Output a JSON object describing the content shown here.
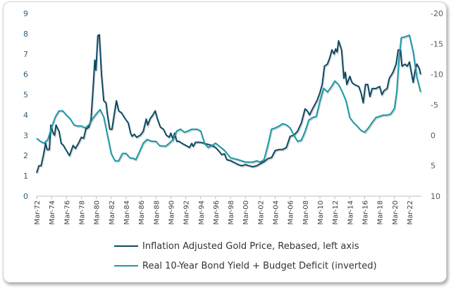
{
  "chart_data": {
    "type": "line",
    "title": "",
    "xlabel": "",
    "ylabel": "",
    "x_tick_labels": [
      "Mar-72",
      "Mar-74",
      "Mar-76",
      "Mar-78",
      "Mar-80",
      "Mar-82",
      "Mar-84",
      "Mar-86",
      "Mar-88",
      "Mar-90",
      "Mar-92",
      "Mar-94",
      "Mar-96",
      "Mar-98",
      "Mar-00",
      "Mar-02",
      "Mar-04",
      "Mar-06",
      "Mar-08",
      "Mar-10",
      "Mar-12",
      "Mar-14",
      "Mar-16",
      "Mar-18",
      "Mar-20",
      "Mar-22"
    ],
    "x_range": [
      1972.0,
      2023.6
    ],
    "left_axis": {
      "range": [
        0,
        9
      ],
      "ticks": [
        "0",
        "1",
        "2",
        "3",
        "4",
        "5",
        "6",
        "7",
        "8",
        "9"
      ]
    },
    "right_axis": {
      "range": [
        -20,
        10
      ],
      "inverted": true,
      "ticks": [
        "-20",
        "-15",
        "-10",
        "-5",
        "0",
        "5",
        "10"
      ]
    },
    "grid": false,
    "legend_position": "bottom",
    "series": [
      {
        "name": "Inflation Adjusted Gold Price, Rebased, left axis",
        "axis": "left",
        "color": "#0d4a63",
        "points": [
          [
            1972.0,
            1.15
          ],
          [
            1972.3,
            1.5
          ],
          [
            1972.6,
            1.5
          ],
          [
            1972.9,
            2.0
          ],
          [
            1973.2,
            2.6
          ],
          [
            1973.4,
            2.3
          ],
          [
            1973.7,
            2.3
          ],
          [
            1973.9,
            3.5
          ],
          [
            1974.2,
            3.1
          ],
          [
            1974.4,
            3.0
          ],
          [
            1974.6,
            3.5
          ],
          [
            1975.0,
            3.2
          ],
          [
            1975.3,
            2.6
          ],
          [
            1975.6,
            2.5
          ],
          [
            1975.9,
            2.3
          ],
          [
            1976.4,
            2.0
          ],
          [
            1976.9,
            2.5
          ],
          [
            1977.2,
            2.35
          ],
          [
            1977.6,
            2.6
          ],
          [
            1978.0,
            2.9
          ],
          [
            1978.3,
            2.85
          ],
          [
            1978.6,
            3.3
          ],
          [
            1979.0,
            3.4
          ],
          [
            1979.3,
            3.8
          ],
          [
            1979.6,
            5.5
          ],
          [
            1979.8,
            6.7
          ],
          [
            1979.95,
            6.2
          ],
          [
            1980.2,
            7.9
          ],
          [
            1980.4,
            7.95
          ],
          [
            1980.7,
            6.0
          ],
          [
            1981.0,
            4.7
          ],
          [
            1981.3,
            4.6
          ],
          [
            1981.5,
            4.0
          ],
          [
            1981.8,
            3.3
          ],
          [
            1982.1,
            3.3
          ],
          [
            1982.4,
            4.0
          ],
          [
            1982.7,
            4.7
          ],
          [
            1983.0,
            4.2
          ],
          [
            1983.4,
            4.1
          ],
          [
            1983.9,
            3.8
          ],
          [
            1984.3,
            3.6
          ],
          [
            1984.6,
            3.1
          ],
          [
            1984.8,
            2.95
          ],
          [
            1985.1,
            3.05
          ],
          [
            1985.4,
            2.9
          ],
          [
            1985.9,
            3.0
          ],
          [
            1986.3,
            3.2
          ],
          [
            1986.7,
            3.8
          ],
          [
            1986.9,
            3.5
          ],
          [
            1987.2,
            3.8
          ],
          [
            1987.6,
            4.0
          ],
          [
            1987.9,
            4.2
          ],
          [
            1988.2,
            3.8
          ],
          [
            1988.6,
            3.4
          ],
          [
            1989.0,
            3.3
          ],
          [
            1989.4,
            3.0
          ],
          [
            1989.8,
            2.9
          ],
          [
            1990.0,
            3.1
          ],
          [
            1990.3,
            2.8
          ],
          [
            1990.5,
            3.1
          ],
          [
            1990.8,
            2.7
          ],
          [
            1991.1,
            2.7
          ],
          [
            1991.5,
            2.6
          ],
          [
            1992.0,
            2.5
          ],
          [
            1992.5,
            2.4
          ],
          [
            1992.8,
            2.6
          ],
          [
            1993.0,
            2.45
          ],
          [
            1993.3,
            2.65
          ],
          [
            1994.0,
            2.65
          ],
          [
            1994.5,
            2.6
          ],
          [
            1995.0,
            2.55
          ],
          [
            1995.5,
            2.5
          ],
          [
            1996.0,
            2.4
          ],
          [
            1996.5,
            2.2
          ],
          [
            1996.8,
            2.05
          ],
          [
            1997.2,
            2.08
          ],
          [
            1997.5,
            1.8
          ],
          [
            1998.0,
            1.75
          ],
          [
            1999.0,
            1.56
          ],
          [
            1999.5,
            1.5
          ],
          [
            2000.0,
            1.55
          ],
          [
            2000.5,
            1.5
          ],
          [
            2001.0,
            1.45
          ],
          [
            2001.5,
            1.5
          ],
          [
            2002.0,
            1.6
          ],
          [
            2002.5,
            1.7
          ],
          [
            2003.0,
            1.85
          ],
          [
            2003.5,
            1.9
          ],
          [
            2004.0,
            2.25
          ],
          [
            2004.5,
            2.3
          ],
          [
            2005.0,
            2.3
          ],
          [
            2005.5,
            2.4
          ],
          [
            2006.0,
            2.95
          ],
          [
            2006.5,
            3.0
          ],
          [
            2007.0,
            3.2
          ],
          [
            2007.5,
            3.6
          ],
          [
            2008.0,
            4.3
          ],
          [
            2008.3,
            4.2
          ],
          [
            2008.6,
            4.0
          ],
          [
            2009.0,
            4.3
          ],
          [
            2009.3,
            4.5
          ],
          [
            2009.6,
            4.7
          ],
          [
            2010.0,
            5.1
          ],
          [
            2010.3,
            5.5
          ],
          [
            2010.6,
            6.4
          ],
          [
            2011.0,
            6.5
          ],
          [
            2011.3,
            6.8
          ],
          [
            2011.6,
            7.2
          ],
          [
            2011.9,
            7.0
          ],
          [
            2012.1,
            7.25
          ],
          [
            2012.3,
            7.1
          ],
          [
            2012.5,
            7.65
          ],
          [
            2012.9,
            7.2
          ],
          [
            2013.2,
            5.8
          ],
          [
            2013.4,
            6.1
          ],
          [
            2013.6,
            5.5
          ],
          [
            2014.0,
            5.9
          ],
          [
            2014.3,
            5.6
          ],
          [
            2014.6,
            5.5
          ],
          [
            2015.2,
            5.4
          ],
          [
            2015.5,
            5.1
          ],
          [
            2015.8,
            4.6
          ],
          [
            2016.1,
            5.5
          ],
          [
            2016.4,
            5.5
          ],
          [
            2016.7,
            4.9
          ],
          [
            2017.0,
            5.3
          ],
          [
            2017.5,
            5.3
          ],
          [
            2018.0,
            5.4
          ],
          [
            2018.3,
            5.0
          ],
          [
            2018.6,
            5.2
          ],
          [
            2019.0,
            5.3
          ],
          [
            2019.3,
            5.8
          ],
          [
            2019.8,
            6.1
          ],
          [
            2020.2,
            6.5
          ],
          [
            2020.5,
            7.2
          ],
          [
            2020.8,
            7.2
          ],
          [
            2021.0,
            6.4
          ],
          [
            2021.4,
            6.5
          ],
          [
            2021.7,
            6.4
          ],
          [
            2022.0,
            6.6
          ],
          [
            2022.3,
            6.0
          ],
          [
            2022.5,
            5.6
          ],
          [
            2022.8,
            6.3
          ],
          [
            2023.0,
            6.5
          ],
          [
            2023.3,
            6.3
          ],
          [
            2023.5,
            6.0
          ]
        ]
      },
      {
        "name": "Real 10-Year Bond Yield + Budget Deficit (inverted)",
        "axis": "right",
        "color": "#1a9aa8",
        "points": [
          [
            1972.0,
            0.5
          ],
          [
            1972.5,
            1.0
          ],
          [
            1973.0,
            1.3
          ],
          [
            1973.5,
            0.7
          ],
          [
            1974.0,
            -1.3
          ],
          [
            1974.5,
            -3.0
          ],
          [
            1975.0,
            -4.0
          ],
          [
            1975.5,
            -4.0
          ],
          [
            1976.0,
            -3.3
          ],
          [
            1976.5,
            -2.7
          ],
          [
            1977.0,
            -1.7
          ],
          [
            1977.5,
            -1.5
          ],
          [
            1978.0,
            -1.5
          ],
          [
            1978.5,
            -1.2
          ],
          [
            1979.0,
            -1.7
          ],
          [
            1979.5,
            -2.7
          ],
          [
            1980.0,
            -3.5
          ],
          [
            1980.5,
            -4.2
          ],
          [
            1981.0,
            -3.0
          ],
          [
            1981.5,
            0.0
          ],
          [
            1982.0,
            3.0
          ],
          [
            1982.5,
            4.2
          ],
          [
            1983.0,
            4.2
          ],
          [
            1983.5,
            3.0
          ],
          [
            1984.0,
            3.0
          ],
          [
            1984.5,
            3.7
          ],
          [
            1985.0,
            3.8
          ],
          [
            1985.3,
            4.0
          ],
          [
            1985.8,
            2.7
          ],
          [
            1986.3,
            1.3
          ],
          [
            1986.8,
            0.7
          ],
          [
            1987.5,
            1.0
          ],
          [
            1988.0,
            1.0
          ],
          [
            1988.5,
            1.7
          ],
          [
            1989.3,
            1.8
          ],
          [
            1989.8,
            1.3
          ],
          [
            1990.3,
            0.7
          ],
          [
            1990.8,
            -0.7
          ],
          [
            1991.3,
            -1.0
          ],
          [
            1991.8,
            -0.5
          ],
          [
            1992.3,
            -0.7
          ],
          [
            1992.8,
            -1.0
          ],
          [
            1993.5,
            -1.0
          ],
          [
            1994.0,
            -0.7
          ],
          [
            1994.5,
            1.3
          ],
          [
            1995.0,
            2.0
          ],
          [
            1995.5,
            1.7
          ],
          [
            1996.0,
            1.3
          ],
          [
            1996.5,
            1.8
          ],
          [
            1997.0,
            2.3
          ],
          [
            1997.2,
            2.5
          ],
          [
            1998.0,
            3.7
          ],
          [
            1999.0,
            4.0
          ],
          [
            2000.0,
            4.4
          ],
          [
            2001.0,
            4.4
          ],
          [
            2001.5,
            4.2
          ],
          [
            2002.0,
            4.4
          ],
          [
            2002.5,
            4.0
          ],
          [
            2003.0,
            1.7
          ],
          [
            2003.5,
            -1.0
          ],
          [
            2004.0,
            -1.2
          ],
          [
            2004.5,
            -1.5
          ],
          [
            2005.0,
            -1.9
          ],
          [
            2005.5,
            -1.7
          ],
          [
            2006.0,
            -1.2
          ],
          [
            2006.5,
            0.0
          ],
          [
            2007.0,
            1.0
          ],
          [
            2007.5,
            0.8
          ],
          [
            2008.0,
            -0.6
          ],
          [
            2008.5,
            -2.5
          ],
          [
            2009.0,
            -2.9
          ],
          [
            2009.5,
            -3.1
          ],
          [
            2010.0,
            -5.6
          ],
          [
            2010.5,
            -7.7
          ],
          [
            2011.0,
            -7.1
          ],
          [
            2011.5,
            -7.9
          ],
          [
            2012.0,
            -8.9
          ],
          [
            2012.5,
            -8.3
          ],
          [
            2013.0,
            -7.1
          ],
          [
            2013.5,
            -5.6
          ],
          [
            2014.0,
            -2.9
          ],
          [
            2014.5,
            -2.1
          ],
          [
            2015.0,
            -1.5
          ],
          [
            2015.5,
            -0.8
          ],
          [
            2016.0,
            -0.5
          ],
          [
            2016.5,
            -1.2
          ],
          [
            2017.0,
            -2.1
          ],
          [
            2017.5,
            -2.9
          ],
          [
            2018.0,
            -3.1
          ],
          [
            2018.5,
            -3.3
          ],
          [
            2019.0,
            -3.3
          ],
          [
            2019.5,
            -3.5
          ],
          [
            2020.0,
            -4.4
          ],
          [
            2020.3,
            -7.1
          ],
          [
            2020.6,
            -12.5
          ],
          [
            2020.9,
            -16.0
          ],
          [
            2021.5,
            -16.2
          ],
          [
            2022.0,
            -16.4
          ],
          [
            2022.5,
            -13.7
          ],
          [
            2023.0,
            -9.5
          ],
          [
            2023.5,
            -7.1
          ]
        ]
      }
    ]
  }
}
